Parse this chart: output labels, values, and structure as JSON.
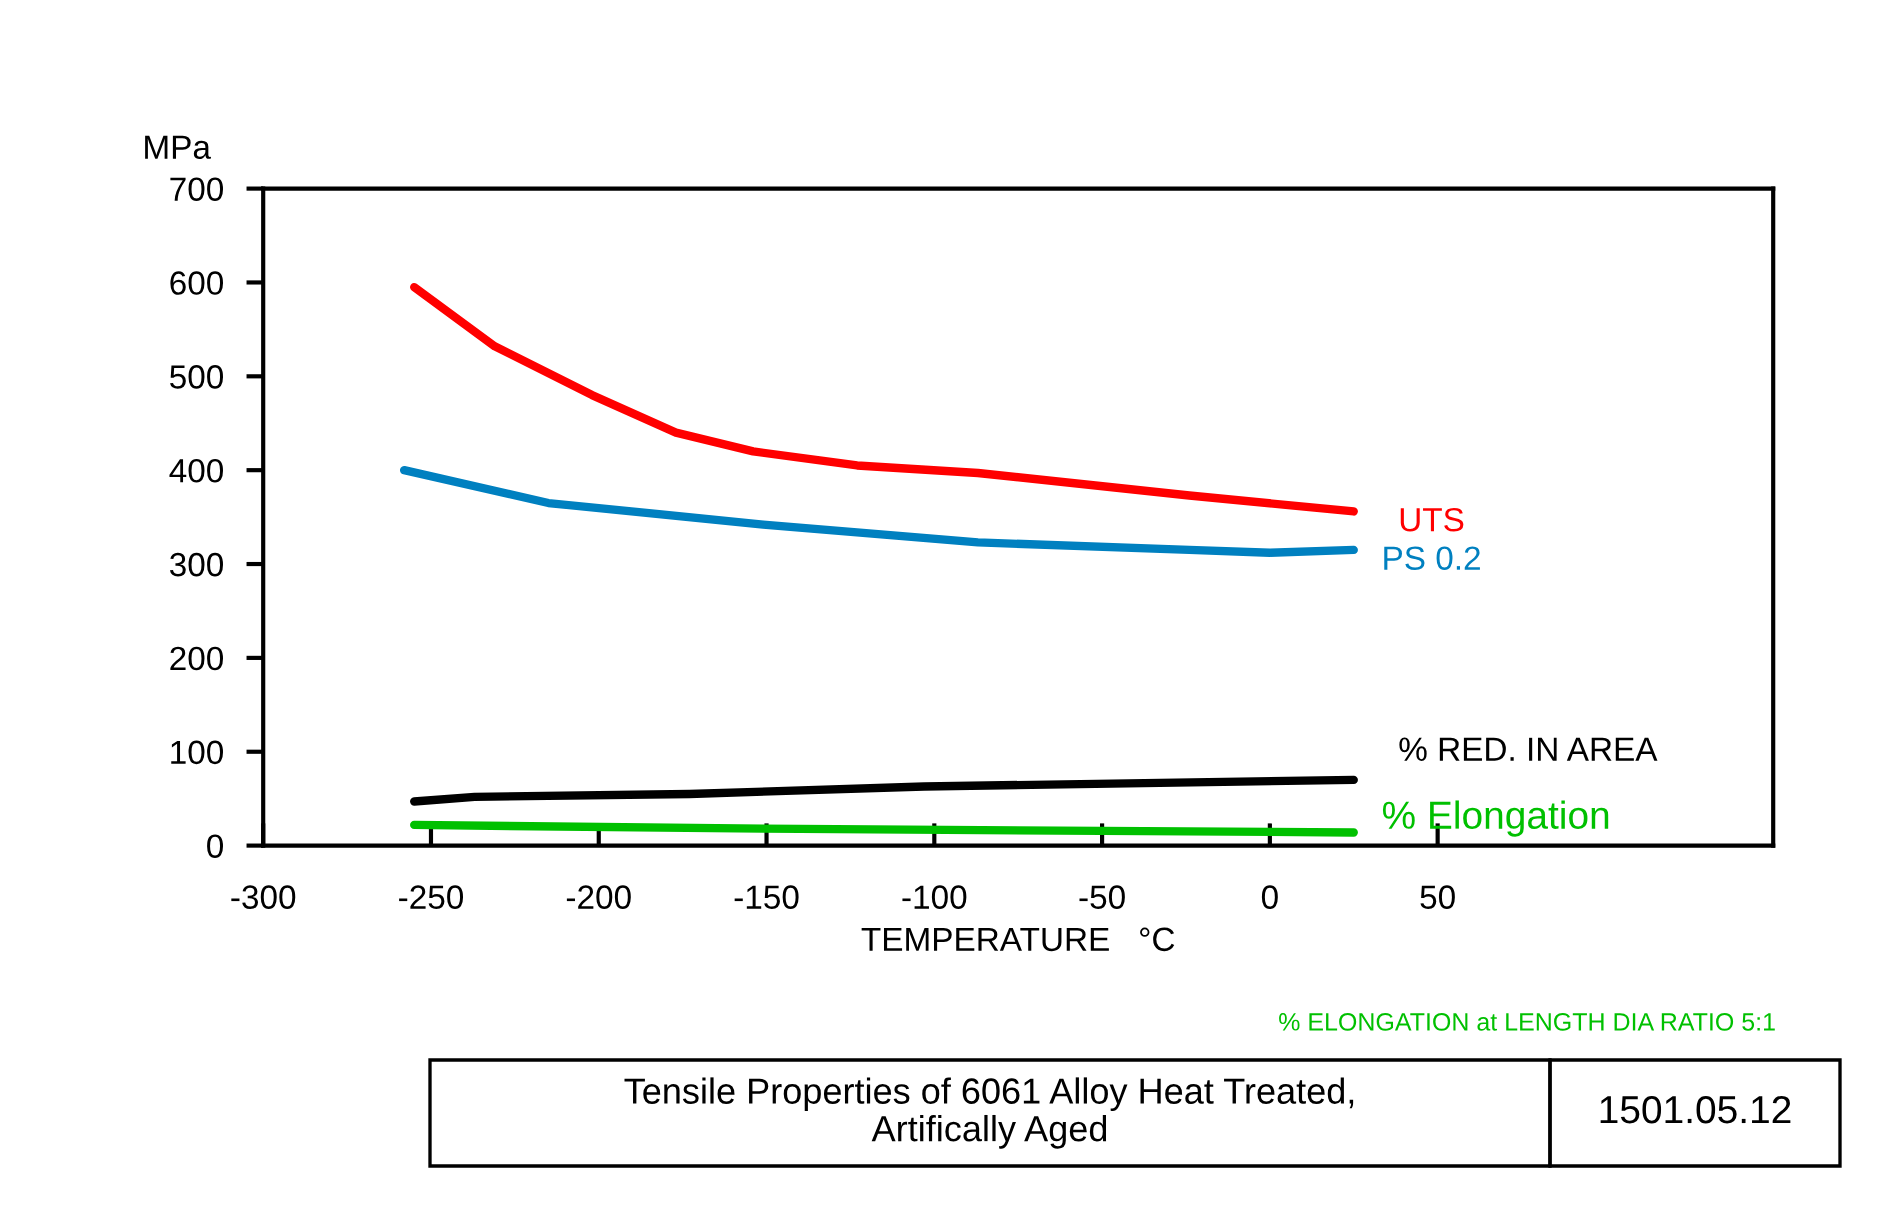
{
  "chart_data": {
    "type": "line",
    "title": "Tensile Properties of 6061 Alloy Heat Treated,\nArtifically Aged",
    "xlabel": "TEMPERATURE   °C",
    "ylabel": "MPa",
    "annotations": [
      "% ELONGATION at LENGTH DIA RATIO 5:1",
      "1501.05.12"
    ],
    "xlim": [
      -300,
      150
    ],
    "xticks": [
      -300,
      -250,
      -200,
      -150,
      -100,
      -50,
      0,
      50
    ],
    "ylim": [
      0,
      700
    ],
    "yticks": [
      0,
      100,
      200,
      300,
      400,
      500,
      600,
      700
    ],
    "grid": false,
    "legend": false,
    "marker": "none",
    "line_style": "solid",
    "series": [
      {
        "name": "UTS",
        "color": "#ff0000",
        "x": [
          -255,
          -231,
          -202,
          -177,
          -154,
          -123,
          -87,
          -24,
          25
        ],
        "values": [
          595,
          532,
          480,
          440,
          420,
          405,
          397,
          373,
          356
        ]
      },
      {
        "name": "PS 0.2",
        "color": "#0080c0",
        "x": [
          -258,
          -215,
          -151,
          -87,
          -24,
          0,
          25
        ],
        "values": [
          400,
          365,
          342,
          323,
          315,
          312,
          315
        ]
      },
      {
        "name": "% RED. IN AREA",
        "color": "#000000",
        "x": [
          -255,
          -237,
          -173,
          -103,
          25
        ],
        "values": [
          47,
          52,
          55,
          63,
          70
        ]
      },
      {
        "name": "% Elongation",
        "color": "#00c000",
        "x": [
          -255,
          -151,
          25
        ],
        "values": [
          22,
          18,
          14
        ]
      }
    ]
  }
}
